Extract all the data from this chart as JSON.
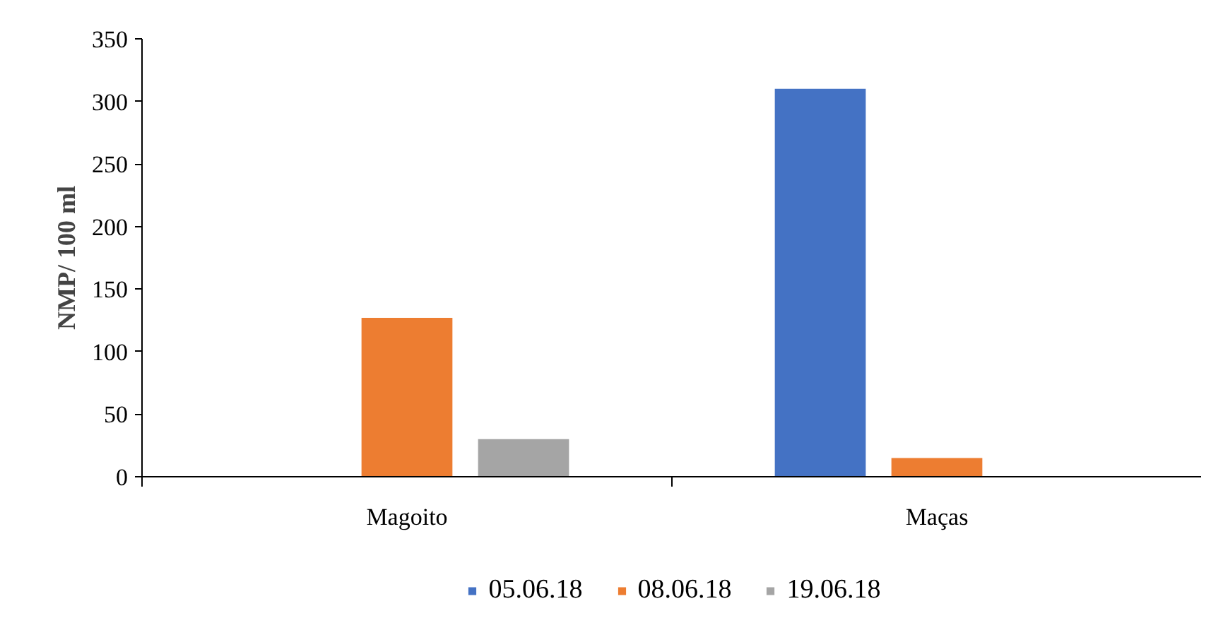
{
  "chart_data": {
    "type": "bar",
    "ylabel": "NMP/ 100 ml",
    "categories": [
      "Magoito",
      "Maças"
    ],
    "series": [
      {
        "name": "05.06.18",
        "color": "#4472c4",
        "values": [
          0,
          310
        ]
      },
      {
        "name": "08.06.18",
        "color": "#ed7d31",
        "values": [
          127,
          15
        ]
      },
      {
        "name": "19.06.18",
        "color": "#a5a5a5",
        "values": [
          30,
          0
        ]
      }
    ],
    "ylim": [
      0,
      350
    ],
    "yticks": [
      0,
      50,
      100,
      150,
      200,
      250,
      300,
      350
    ],
    "grid": false,
    "legend": "bottom"
  }
}
